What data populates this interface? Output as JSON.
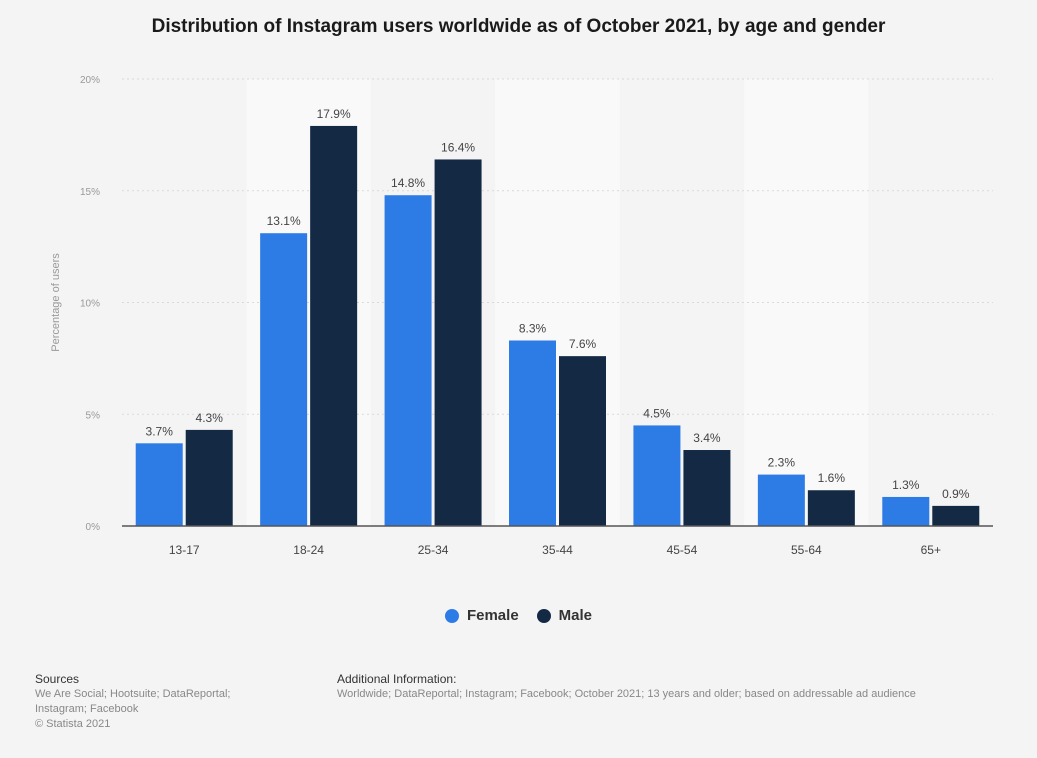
{
  "title": "Distribution of Instagram users worldwide as of October 2021, by age and gender",
  "colors": {
    "female": "#2d7ce6",
    "male": "#142a44",
    "grid": "#d9d9d9",
    "band": "#f9f9f9",
    "axis": "#555555"
  },
  "chart_data": {
    "type": "bar",
    "title": "Distribution of Instagram users worldwide as of October 2021, by age and gender",
    "xlabel": "",
    "ylabel": "Percentage of users",
    "ylim": [
      0,
      20
    ],
    "yticks": [
      "0%",
      "5%",
      "10%",
      "15%",
      "20%"
    ],
    "yticks_values": [
      0,
      5,
      10,
      15,
      20
    ],
    "categories": [
      "13-17",
      "18-24",
      "25-34",
      "35-44",
      "45-54",
      "55-64",
      "65+"
    ],
    "series": [
      {
        "name": "Female",
        "values": [
          3.7,
          13.1,
          14.8,
          8.3,
          4.5,
          2.3,
          1.3
        ],
        "labels": [
          "3.7%",
          "13.1%",
          "14.8%",
          "8.3%",
          "4.5%",
          "2.3%",
          "1.3%"
        ]
      },
      {
        "name": "Male",
        "values": [
          4.3,
          17.9,
          16.4,
          7.6,
          3.4,
          1.6,
          0.9
        ],
        "labels": [
          "4.3%",
          "17.9%",
          "16.4%",
          "7.6%",
          "3.4%",
          "1.6%",
          "0.9%"
        ]
      }
    ],
    "legend": "bottom-center",
    "grid": true
  },
  "footer": {
    "sources_heading": "Sources",
    "sources_line1": "We Are Social; Hootsuite; DataReportal;",
    "sources_line2": "Instagram; Facebook",
    "copyright": "© Statista 2021",
    "additional_heading": "Additional Information:",
    "additional_text": "Worldwide; DataReportal; Instagram; Facebook; October 2021; 13 years and older; based on addressable ad audience"
  }
}
